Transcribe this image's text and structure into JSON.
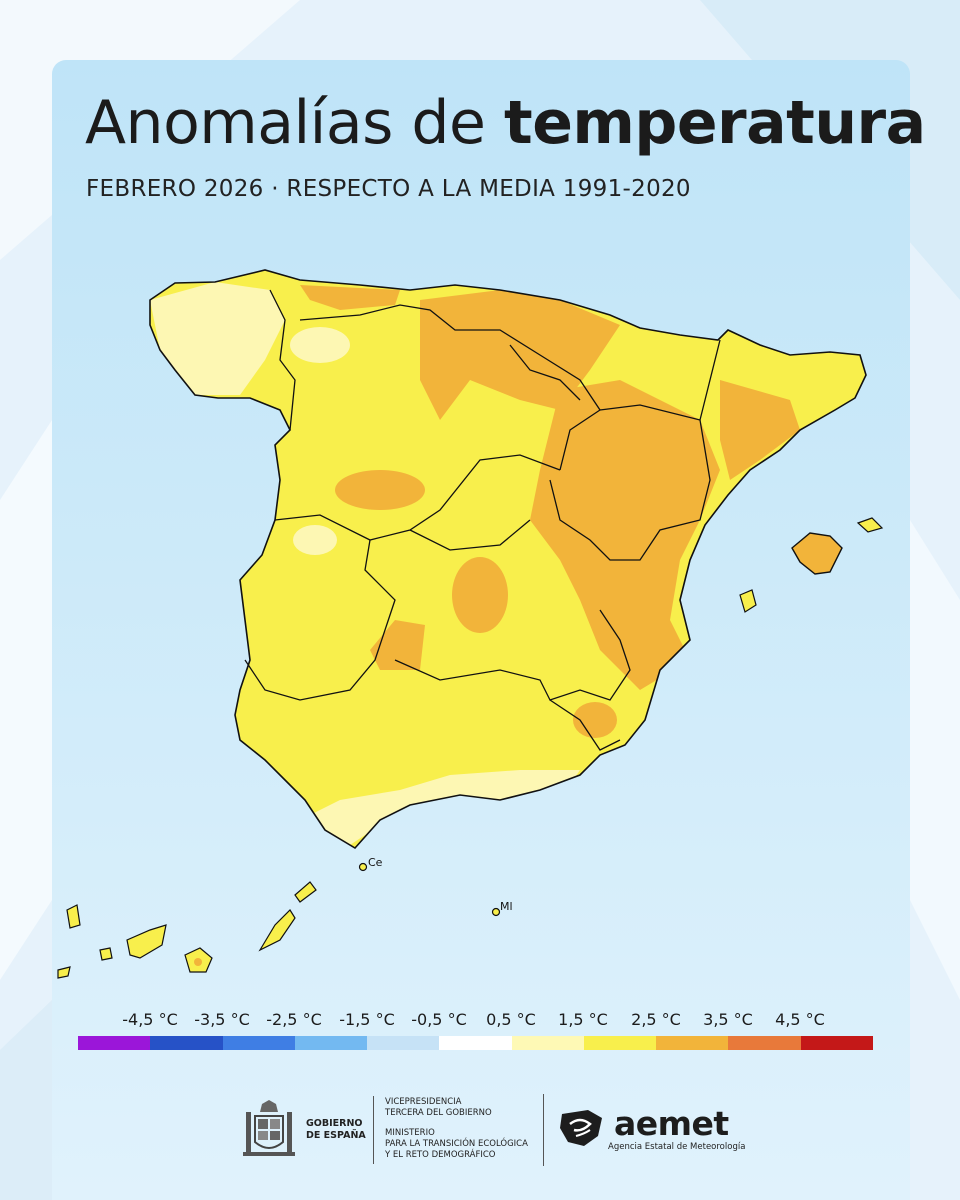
{
  "header": {
    "title_light": "Anomalías de",
    "title_bold": "temperatura",
    "subtitle": "FEBRERO 2026 · RESPECTO A LA MEDIA 1991-2020"
  },
  "map": {
    "region": "Spain",
    "labels": {
      "ceuta": "Ce",
      "melilla": "Ml"
    },
    "colors": {
      "land_border": "#111111",
      "sea": "#c9e8f8"
    }
  },
  "legend": {
    "labels": [
      "-4,5 °C",
      "-3,5 °C",
      "-2,5 °C",
      "-1,5 °C",
      "-0,5 °C",
      "0,5 °C",
      "1,5 °C",
      "2,5 °C",
      "3,5 °C",
      "4,5 °C"
    ],
    "colors": [
      "#9b16d9",
      "#2652c7",
      "#3f7ee4",
      "#73b9f1",
      "#c6e2f6",
      "#ffffff",
      "#fef9b5",
      "#f8ef4c",
      "#f2b43a",
      "#e8793a",
      "#c41818"
    ]
  },
  "footer": {
    "gobierno_line1": "GOBIERNO",
    "gobierno_line2": "DE ESPAÑA",
    "vice_line1": "VICEPRESIDENCIA",
    "vice_line2": "TERCERA DEL GOBIERNO",
    "min_line1": "MINISTERIO",
    "min_line2": "PARA LA TRANSICIÓN ECOLÓGICA",
    "min_line3": "Y EL RETO DEMOGRÁFICO",
    "aemet_name": "aemet",
    "aemet_sub": "Agencia Estatal de Meteorología"
  }
}
